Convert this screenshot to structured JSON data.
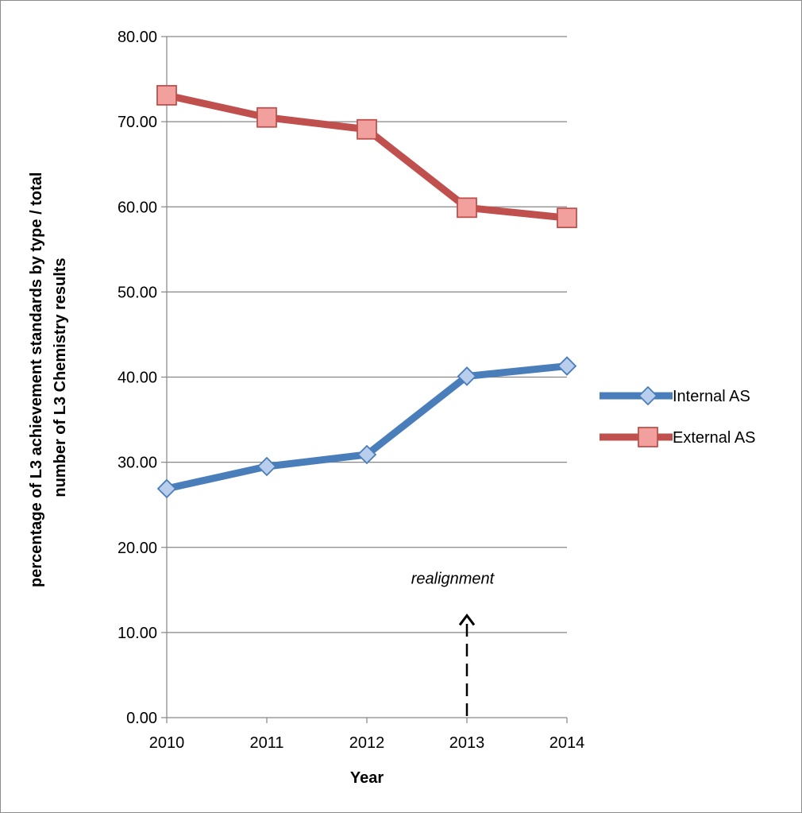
{
  "chart_data": {
    "type": "line",
    "categories": [
      "2010",
      "2011",
      "2012",
      "2013",
      "2014"
    ],
    "series": [
      {
        "name": "Internal AS",
        "values": [
          26.9,
          29.5,
          30.9,
          40.1,
          41.3
        ],
        "color": "#4a7ebb",
        "marker": "diamond"
      },
      {
        "name": "External AS",
        "values": [
          73.1,
          70.5,
          69.1,
          59.9,
          58.7
        ],
        "color": "#c0504d",
        "marker": "square"
      }
    ],
    "xlabel": "Year",
    "ylabel_line1": "percentage  of L3 achievement standards by type / total",
    "ylabel_line2": "number of L3 Chemistry results",
    "ylim": [
      0,
      80
    ],
    "yticks": [
      "0.00",
      "10.00",
      "20.00",
      "30.00",
      "40.00",
      "50.00",
      "60.00",
      "70.00",
      "80.00"
    ],
    "grid": true,
    "legend_position": "right",
    "annotation": {
      "text": "realignment",
      "x": "2013",
      "y_from": 0,
      "y_to": 12
    }
  }
}
